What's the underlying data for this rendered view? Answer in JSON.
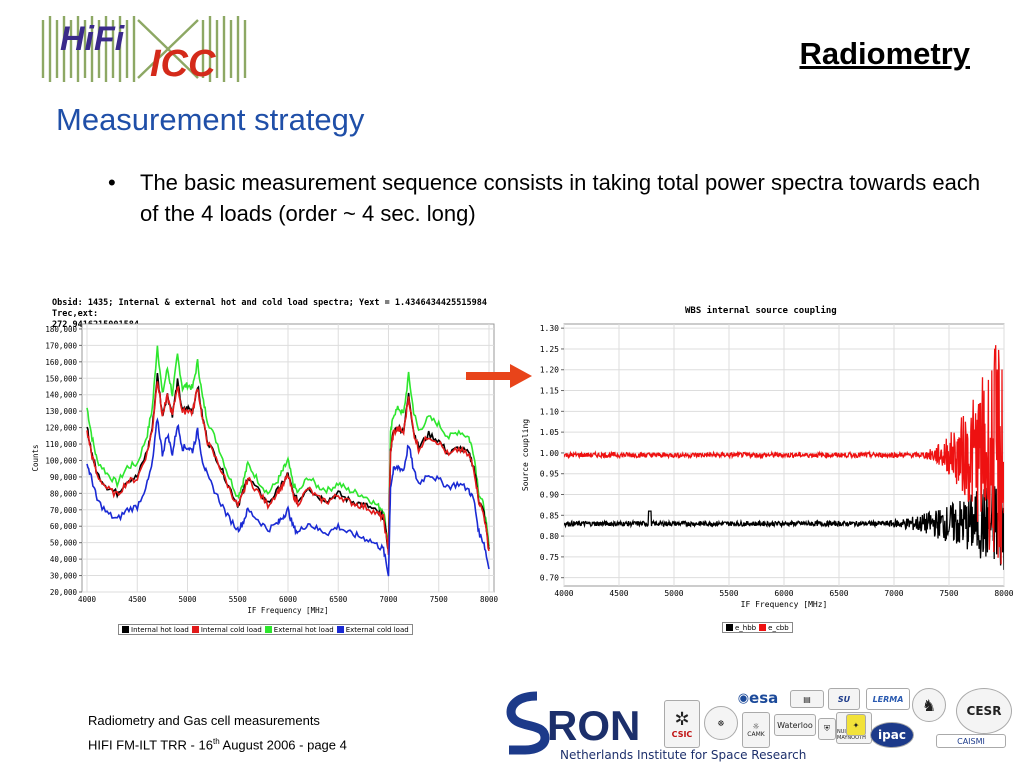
{
  "header": {
    "logo_hifi": "HiFi",
    "logo_icc": "ICC",
    "section_title": "Radiometry",
    "slide_title": "Measurement strategy"
  },
  "bullets": [
    "The basic measurement sequence consists in taking total power spectra towards each of the 4 loads (order ~ 4 sec. long)"
  ],
  "bullet_glyph": "•",
  "chart_data": [
    {
      "type": "line",
      "title_line1": "Obsid: 1435;  Internal & external hot and cold load spectra; Yext = 1.4346434425515984 Trec,ext:",
      "title_line2": "272.9416215001584",
      "xlabel": "IF Frequency [MHz]",
      "ylabel": "Counts",
      "xlim": [
        3950,
        8050
      ],
      "ylim": [
        20000,
        183000
      ],
      "x_ticks": [
        4000,
        4500,
        5000,
        5500,
        6000,
        6500,
        7000,
        7500,
        8000
      ],
      "y_ticks": [
        20000,
        30000,
        40000,
        50000,
        60000,
        70000,
        80000,
        90000,
        100000,
        110000,
        120000,
        130000,
        140000,
        150000,
        160000,
        170000,
        180000
      ],
      "y_tick_labels": [
        "20,000",
        "30,000",
        "40,000",
        "50,000",
        "60,000",
        "70,000",
        "80,000",
        "90,000",
        "100,000",
        "110,000",
        "120,000",
        "130,000",
        "140,000",
        "150,000",
        "160,000",
        "170,000",
        "180,000"
      ],
      "grid": true,
      "legend_position": "bottom",
      "x": [
        4000,
        4050,
        4100,
        4200,
        4300,
        4400,
        4500,
        4600,
        4650,
        4700,
        4750,
        4800,
        4850,
        4900,
        4950,
        5000,
        5050,
        5100,
        5150,
        5200,
        5300,
        5400,
        5500,
        5550,
        5600,
        5700,
        5800,
        5900,
        5950,
        6000,
        6050,
        6100,
        6200,
        6300,
        6400,
        6500,
        6600,
        6700,
        6800,
        6900,
        6950,
        7000,
        7020,
        7050,
        7100,
        7150,
        7200,
        7250,
        7300,
        7400,
        7500,
        7600,
        7700,
        7800,
        7850,
        7900,
        7950,
        8000
      ],
      "series": [
        {
          "name": "Internal hot load",
          "color": "#000000",
          "values": [
            120000,
            104000,
            92000,
            84000,
            80000,
            88000,
            90000,
            106000,
            120000,
            152000,
            128000,
            140000,
            128000,
            148000,
            130000,
            132000,
            130000,
            146000,
            126000,
            112000,
            100000,
            86000,
            73000,
            80000,
            90000,
            82000,
            74000,
            82000,
            86000,
            92000,
            80000,
            75000,
            84000,
            78000,
            76000,
            80000,
            76000,
            74000,
            72000,
            68000,
            66000,
            45000,
            106000,
            118000,
            120000,
            118000,
            140000,
            118000,
            108000,
            116000,
            112000,
            104000,
            108000,
            104000,
            96000,
            76000,
            68000,
            46000
          ]
        },
        {
          "name": "Internal cold load",
          "color": "#e21a1a",
          "values": [
            118000,
            103000,
            91000,
            83000,
            79000,
            87000,
            89000,
            105000,
            119000,
            150000,
            127000,
            139000,
            127000,
            146000,
            129000,
            131000,
            129000,
            145000,
            125000,
            111000,
            99000,
            85000,
            72000,
            79000,
            89000,
            81000,
            73000,
            81000,
            85000,
            91000,
            79000,
            74000,
            83000,
            77000,
            75000,
            79000,
            75000,
            73000,
            71000,
            67000,
            65000,
            44000,
            105000,
            117000,
            119000,
            117000,
            139000,
            117000,
            107000,
            115000,
            111000,
            103000,
            107000,
            103000,
            95000,
            75000,
            67000,
            45000
          ]
        },
        {
          "name": "External hot load",
          "color": "#2ee62e",
          "values": [
            132000,
            114000,
            100000,
            92000,
            86000,
            96000,
            98000,
            116000,
            132000,
            170000,
            140000,
            156000,
            140000,
            164000,
            144000,
            146000,
            144000,
            160000,
            138000,
            124000,
            110000,
            92000,
            78000,
            86000,
            98000,
            88000,
            80000,
            88000,
            94000,
            100000,
            86000,
            80000,
            90000,
            84000,
            82000,
            86000,
            82000,
            80000,
            77000,
            72000,
            70000,
            48000,
            116000,
            128000,
            132000,
            128000,
            152000,
            130000,
            118000,
            126000,
            122000,
            114000,
            118000,
            114000,
            104000,
            80000,
            72000,
            48000
          ]
        },
        {
          "name": "External cold load",
          "color": "#1a2ad4",
          "values": [
            98000,
            88000,
            76000,
            68000,
            64000,
            70000,
            72000,
            86000,
            98000,
            126000,
            104000,
            116000,
            104000,
            122000,
            108000,
            108000,
            106000,
            118000,
            100000,
            90000,
            78000,
            66000,
            58000,
            62000,
            70000,
            64000,
            58000,
            62000,
            66000,
            70000,
            60000,
            56000,
            62000,
            58000,
            56000,
            60000,
            56000,
            54000,
            52000,
            48000,
            46000,
            30000,
            84000,
            94000,
            96000,
            94000,
            110000,
            94000,
            86000,
            92000,
            88000,
            84000,
            86000,
            82000,
            76000,
            56000,
            50000,
            34000
          ]
        }
      ]
    },
    {
      "type": "line",
      "title": "WBS internal source coupling",
      "xlabel": "IF Frequency [MHz]",
      "ylabel": "Source coupling",
      "xlim": [
        4000,
        8000
      ],
      "ylim": [
        0.68,
        1.31
      ],
      "x_ticks": [
        4000,
        4500,
        5000,
        5500,
        6000,
        6500,
        7000,
        7500,
        8000
      ],
      "y_ticks": [
        0.7,
        0.75,
        0.8,
        0.85,
        0.9,
        0.95,
        1.0,
        1.05,
        1.1,
        1.15,
        1.2,
        1.25,
        1.3
      ],
      "y_tick_labels": [
        "0.70",
        "0.75",
        "0.80",
        "0.85",
        "0.90",
        "0.95",
        "1.00",
        "1.05",
        "1.10",
        "1.15",
        "1.20",
        "1.25",
        "1.30"
      ],
      "grid": true,
      "legend_position": "bottom",
      "series": [
        {
          "name": "e_hbb",
          "color": "#000000",
          "level": 0.83,
          "spike": {
            "x": 4780,
            "value": 0.86
          },
          "noise_start": 6800,
          "noise_end_amp": 0.12
        },
        {
          "name": "e_cbb",
          "color": "#ee1111",
          "level": 0.995,
          "noise_start": 7200,
          "noise_end_amp": 0.32
        }
      ]
    }
  ],
  "arrow_color": "#e8441a",
  "footer": {
    "line1": "Radiometry and Gas cell measurements",
    "line2_pre": "HIFI FM-ILT TRR - 16",
    "line2_sup": "th",
    "line2_post": " August 2006 - page 4"
  },
  "partners": {
    "sron_text": "RON",
    "sron_sub": "Netherlands Institute for Space Research",
    "labels": [
      "esa",
      "CSIC",
      "CAMK",
      "Waterloo",
      "SU",
      "LERMA",
      "CESR",
      "ipac",
      "CAISMI",
      "NUI MAYNOOTH"
    ]
  }
}
